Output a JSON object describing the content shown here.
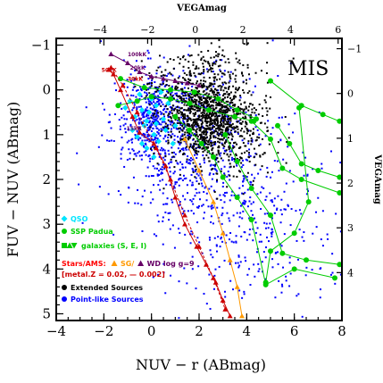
{
  "chart_data": {
    "type": "scatter",
    "title": "",
    "xlabel": "NUV − r (ABmag)",
    "ylabel": "FUV − NUV (ABmag)",
    "top_xlabel": "VEGAmag",
    "right_ylabel": "VEGAmag",
    "panel_label": "MIS",
    "xlim": [
      -4,
      8
    ],
    "ylim": [
      5.15,
      -1.15
    ],
    "x_ticks": [
      "−4",
      "−2",
      "0",
      "2",
      "4",
      "6",
      "8"
    ],
    "y_ticks": [
      "−1",
      "0",
      "1",
      "2",
      "3",
      "4",
      "5"
    ],
    "top_ticks": [
      "−4",
      "−2",
      "0",
      "2",
      "4",
      "6"
    ],
    "right_ticks": [
      "−1",
      "0",
      "1",
      "2",
      "3",
      "4"
    ],
    "top_tick_values": [
      -4,
      -2,
      0,
      2,
      4,
      6
    ],
    "top_axis_offset": 1.84,
    "right_tick_values": [
      -1,
      0,
      1,
      2,
      3,
      4
    ],
    "right_axis_offset": 0.08,
    "grid": false,
    "legend_position": "bottom-left",
    "legend": [
      {
        "label": "QSO",
        "color": "#00e5ff",
        "marker": "diamond"
      },
      {
        "label": "SSP Padua",
        "color": "#00cc00",
        "marker": "circle"
      },
      {
        "label": "galaxies (S, E, I)",
        "color": "#00cc00",
        "marker": "square-triangle"
      },
      {
        "label": "Stars/AMS:",
        "color": "#ff0000",
        "marker": "none"
      },
      {
        "label": "SG/",
        "color": "#ff9900",
        "marker": "triangle"
      },
      {
        "label": "WD log g=9",
        "color": "#660066",
        "marker": "triangle"
      },
      {
        "label": "[metal.Z = 0.02, — 0.002]",
        "color": "#cc0000",
        "marker": "none"
      },
      {
        "label": "Extended Sources",
        "color": "#000000",
        "marker": "circle"
      },
      {
        "label": "Point-like Sources",
        "color": "#0000ff",
        "marker": "circle"
      }
    ],
    "annotations": [
      {
        "text": "100kK",
        "x": -1.0,
        "y": -0.75,
        "color": "#660066"
      },
      {
        "text": "50kK",
        "x": -2.1,
        "y": -0.4,
        "color": "#cc0000"
      },
      {
        "text": "20kK",
        "x": -0.9,
        "y": -0.45,
        "color": "#660066"
      },
      {
        "text": "30kK",
        "x": -1.0,
        "y": -0.2,
        "color": "#cc0000"
      },
      {
        "text": "15kK",
        "x": -1.05,
        "y": 0.9,
        "color": "#660066"
      }
    ],
    "series": [
      {
        "name": "Extended Sources",
        "kind": "cloud",
        "color": "#000000",
        "clusters": [
          {
            "cx": 2.3,
            "cy": 0.6,
            "sx": 0.9,
            "sy": 0.45,
            "n": 900
          },
          {
            "cx": 2.0,
            "cy": -0.2,
            "sx": 1.2,
            "sy": 0.5,
            "n": 250
          },
          {
            "cx": 3.2,
            "cy": 1.2,
            "sx": 1.0,
            "sy": 0.5,
            "n": 200
          }
        ]
      },
      {
        "name": "Point-like Sources",
        "kind": "cloud",
        "color": "#0000ff",
        "clusters": [
          {
            "cx": 1.5,
            "cy": 1.2,
            "sx": 1.6,
            "sy": 0.9,
            "n": 550
          },
          {
            "cx": 0.0,
            "cy": 0.6,
            "sx": 0.6,
            "sy": 0.5,
            "n": 350
          },
          {
            "cx": 3.5,
            "cy": 2.8,
            "sx": 1.7,
            "sy": 1.1,
            "n": 250
          },
          {
            "cx": 5.5,
            "cy": 3.0,
            "sx": 1.4,
            "sy": 1.0,
            "n": 120
          }
        ]
      },
      {
        "name": "QSO",
        "kind": "markers",
        "color": "#00e5ff",
        "marker": "diamond",
        "points": [
          [
            -0.9,
            0.25
          ],
          [
            -0.5,
            0.1
          ],
          [
            -0.1,
            0.5
          ],
          [
            0.2,
            0.35
          ],
          [
            -0.3,
            0.8
          ],
          [
            0.1,
            1.0
          ],
          [
            -0.7,
            0.6
          ],
          [
            0.5,
            0.65
          ],
          [
            0.3,
            1.15
          ],
          [
            -0.2,
            1.3
          ],
          [
            0.0,
            0.2
          ],
          [
            -0.6,
            1.05
          ],
          [
            0.6,
            0.9
          ],
          [
            -1.1,
            0.4
          ],
          [
            0.4,
            0.05
          ],
          [
            -0.4,
            0.45
          ],
          [
            1.0,
            0.8
          ],
          [
            -0.2,
            0.7
          ],
          [
            0.2,
            0.75
          ],
          [
            -0.8,
            0.9
          ],
          [
            0.7,
            0.3
          ],
          [
            0.1,
            1.5
          ],
          [
            -0.4,
            1.2
          ],
          [
            0.9,
            1.2
          ]
        ]
      },
      {
        "name": "SSP Padua",
        "kind": "line",
        "color": "#00cc00",
        "marker": "circle",
        "points": [
          [
            -1.4,
            0.35
          ],
          [
            -0.6,
            0.25
          ],
          [
            0.0,
            0.15
          ],
          [
            0.8,
            0.2
          ],
          [
            1.6,
            0.3
          ],
          [
            2.4,
            0.45
          ],
          [
            3.5,
            0.6
          ],
          [
            4.3,
            0.7
          ]
        ]
      },
      {
        "name": "SSP Padua track 2",
        "kind": "line",
        "color": "#00cc00",
        "marker": "circle",
        "points": [
          [
            -1.3,
            -0.25
          ],
          [
            -0.3,
            -0.05
          ],
          [
            0.8,
            0.0
          ],
          [
            1.8,
            0.05
          ],
          [
            2.8,
            0.2
          ],
          [
            3.6,
            0.45
          ],
          [
            4.4,
            0.65
          ]
        ]
      },
      {
        "name": "SSP Padua track 3",
        "kind": "line",
        "color": "#00cc00",
        "marker": "circle",
        "points": [
          [
            1.0,
            0.6
          ],
          [
            1.6,
            0.9
          ],
          [
            2.1,
            1.2
          ],
          [
            2.6,
            1.5
          ],
          [
            3.0,
            1.95
          ],
          [
            3.6,
            2.4
          ],
          [
            4.2,
            2.9
          ],
          [
            4.8,
            4.35
          ],
          [
            6.0,
            4.0
          ],
          [
            7.7,
            4.2
          ]
        ]
      },
      {
        "name": "SSP Padua track 4",
        "kind": "line",
        "color": "#00cc00",
        "marker": "circle",
        "points": [
          [
            3.1,
            1.0
          ],
          [
            3.6,
            1.6
          ],
          [
            4.2,
            2.2
          ],
          [
            5.0,
            2.8
          ],
          [
            5.5,
            3.65
          ],
          [
            6.5,
            3.8
          ],
          [
            7.9,
            3.9
          ]
        ]
      },
      {
        "name": "SSP Padua track 5",
        "kind": "line",
        "color": "#00cc00",
        "marker": "circle",
        "points": [
          [
            4.2,
            0.7
          ],
          [
            5.0,
            1.1
          ],
          [
            5.5,
            1.75
          ],
          [
            6.3,
            2.0
          ],
          [
            7.9,
            2.3
          ]
        ]
      },
      {
        "name": "SSP Padua track 6",
        "kind": "line",
        "color": "#00cc00",
        "marker": "circle",
        "points": [
          [
            5.0,
            -0.2
          ],
          [
            6.3,
            0.35
          ],
          [
            7.2,
            0.55
          ],
          [
            7.9,
            0.7
          ]
        ]
      },
      {
        "name": "SSP Padua track 7",
        "kind": "line",
        "color": "#00cc00",
        "marker": "circle",
        "points": [
          [
            5.3,
            0.8
          ],
          [
            5.8,
            1.2
          ],
          [
            6.3,
            1.65
          ],
          [
            7.0,
            1.8
          ],
          [
            7.9,
            1.95
          ]
        ]
      },
      {
        "name": "SSP Padua track 8",
        "kind": "line",
        "color": "#00cc00",
        "marker": "circle",
        "points": [
          [
            6.2,
            0.4
          ],
          [
            6.6,
            2.5
          ],
          [
            6.0,
            3.2
          ],
          [
            5.0,
            3.6
          ],
          [
            4.8,
            4.3
          ]
        ]
      },
      {
        "name": "Stars Z=0.02",
        "kind": "line",
        "color": "#cc0000",
        "marker": "triangle",
        "points": [
          [
            -1.8,
            -0.45
          ],
          [
            -1.6,
            -0.35
          ],
          [
            -1.3,
            0.0
          ],
          [
            -0.8,
            0.6
          ],
          [
            -0.5,
            0.95
          ],
          [
            0.1,
            1.2
          ],
          [
            0.6,
            1.7
          ],
          [
            1.0,
            2.4
          ],
          [
            1.4,
            3.0
          ],
          [
            1.9,
            3.5
          ],
          [
            2.3,
            3.9
          ],
          [
            2.7,
            4.3
          ],
          [
            3.0,
            4.7
          ],
          [
            3.3,
            5.05
          ]
        ]
      },
      {
        "name": "Stars Z=0.002",
        "kind": "line",
        "color": "#cc0000",
        "marker": "triangle",
        "dashed": true,
        "points": [
          [
            -1.7,
            -0.5
          ],
          [
            -1.2,
            -0.1
          ],
          [
            -0.6,
            0.5
          ],
          [
            0.2,
            1.3
          ],
          [
            0.8,
            2.0
          ],
          [
            1.4,
            2.8
          ],
          [
            2.0,
            3.5
          ],
          [
            2.6,
            4.2
          ],
          [
            3.1,
            4.9
          ]
        ]
      },
      {
        "name": "SG",
        "kind": "line",
        "color": "#ff9900",
        "marker": "triangle",
        "points": [
          [
            1.4,
            1.1
          ],
          [
            2.0,
            1.8
          ],
          [
            2.6,
            2.5
          ],
          [
            3.0,
            3.2
          ],
          [
            3.3,
            3.8
          ],
          [
            3.6,
            4.4
          ],
          [
            3.8,
            5.05
          ]
        ]
      },
      {
        "name": "WD log g=9",
        "kind": "line",
        "color": "#660066",
        "marker": "triangle",
        "points": [
          [
            -1.7,
            -0.8
          ],
          [
            -1.0,
            -0.6
          ],
          [
            -0.5,
            -0.4
          ],
          [
            0.0,
            -0.3
          ],
          [
            0.5,
            -0.25
          ],
          [
            1.0,
            -0.2
          ],
          [
            1.5,
            -0.15
          ],
          [
            2.0,
            -0.1
          ]
        ]
      }
    ]
  }
}
